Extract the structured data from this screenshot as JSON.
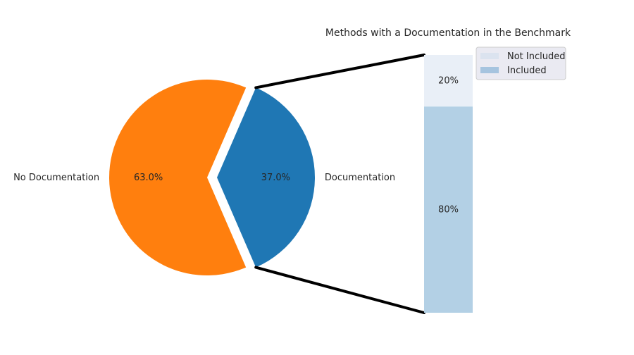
{
  "chart_data": [
    {
      "type": "pie",
      "labels": [
        "No Documentation",
        "Documentation"
      ],
      "values": [
        63.0,
        37.0
      ],
      "autopct": [
        "63.0%",
        "37.0%"
      ],
      "colors": [
        "#ff7f0e",
        "#1f77b4"
      ],
      "exploded": "Documentation"
    },
    {
      "type": "bar",
      "stacked": true,
      "title": "Methods with a Documentation in the Benchmark",
      "series": [
        {
          "name": "Included",
          "value": 0.8,
          "label": "80%",
          "color": "#b3d0e5"
        },
        {
          "name": "Not Included",
          "value": 0.2,
          "label": "20%",
          "color": "#e9eff7"
        }
      ],
      "legend": [
        "Not Included",
        "Included"
      ],
      "legend_colors": [
        "#dbe3ef",
        "#a6c4df"
      ],
      "legend_position": "top-right",
      "connector_color": "#000000"
    }
  ]
}
